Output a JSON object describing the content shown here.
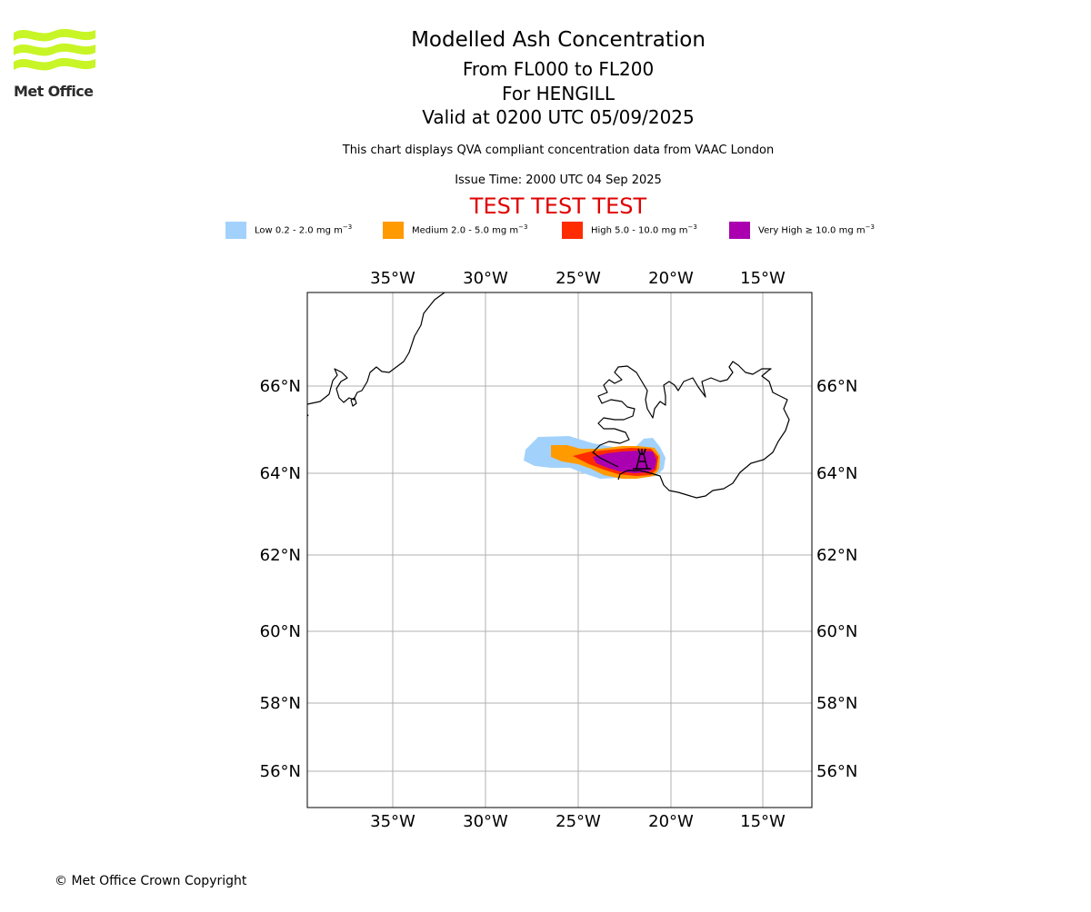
{
  "logo": {
    "text": "Met Office"
  },
  "header": {
    "title": "Modelled Ash Concentration",
    "levels": "From FL000 to FL200",
    "volcano": "For HENGILL",
    "valid": "Valid at 0200 UTC 05/09/2025",
    "compliance": "This chart displays QVA compliant concentration data from VAAC London",
    "issue_time": "Issue Time: 2000 UTC 04 Sep 2025",
    "test_banner": "TEST TEST TEST"
  },
  "legend": [
    {
      "label": "Low 0.2 - 2.0 mg m",
      "exp": "−3",
      "color": "#a2d2fc"
    },
    {
      "label": "Medium 2.0 - 5.0 mg m",
      "exp": "−3",
      "color": "#ff9a00"
    },
    {
      "label": "High 5.0 - 10.0 mg m",
      "exp": "−3",
      "color": "#ff2c00"
    },
    {
      "label": "Very High  ≥  10.0 mg m",
      "exp": "−3",
      "color": "#aa00b0"
    }
  ],
  "map": {
    "lon_ticks": [
      "35°W",
      "30°W",
      "25°W",
      "20°W",
      "15°W"
    ],
    "lat_ticks": [
      "66°N",
      "64°N",
      "62°N",
      "60°N",
      "58°N",
      "56°N"
    ],
    "region": "Iceland",
    "gridline_color": "#b0b0b0",
    "coast_color": "#000000"
  },
  "footer": {
    "copyright": "© Met Office Crown Copyright"
  }
}
